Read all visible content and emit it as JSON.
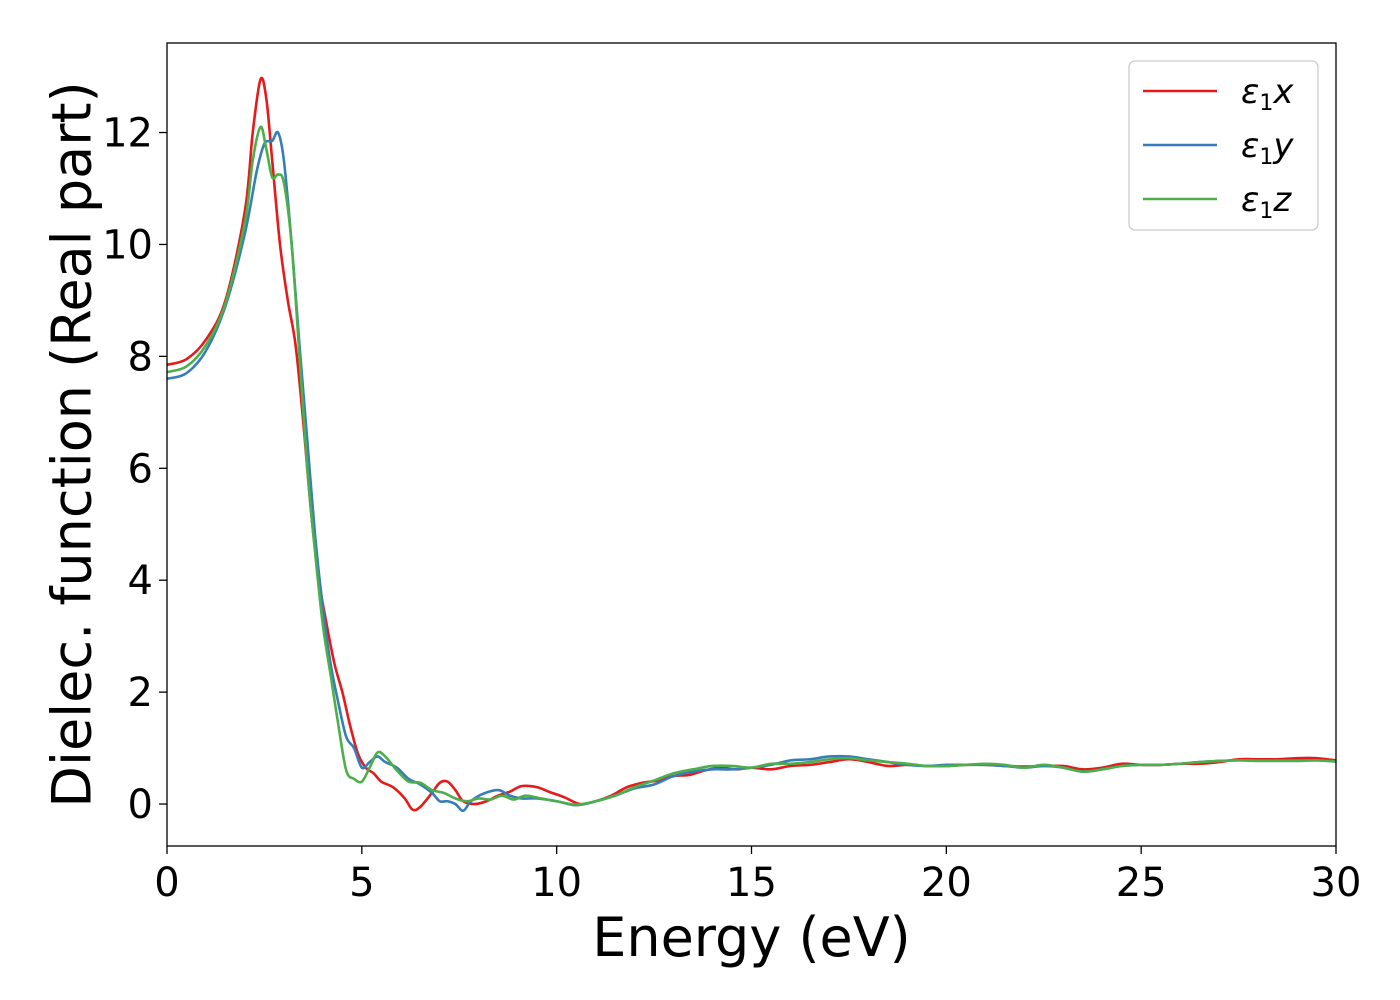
{
  "chart_data": {
    "type": "line",
    "xlabel": "Energy (eV)",
    "ylabel": "Dielec. function (Real part)",
    "xlim": [
      0,
      30
    ],
    "ylim": [
      -0.75,
      13.6
    ],
    "xticks": [
      0,
      5,
      10,
      15,
      20,
      25,
      30
    ],
    "yticks": [
      0,
      2,
      4,
      6,
      8,
      10,
      12
    ],
    "grid": false,
    "legend_position": "top-right",
    "series": [
      {
        "name": "ε1x",
        "label_base": "ε",
        "label_sub": "1",
        "label_tail": "x",
        "color": "#e41a1c",
        "points": [
          [
            0,
            7.85
          ],
          [
            0.5,
            7.95
          ],
          [
            1.0,
            8.3
          ],
          [
            1.5,
            9.0
          ],
          [
            2.0,
            10.6
          ],
          [
            2.2,
            12.0
          ],
          [
            2.4,
            12.95
          ],
          [
            2.55,
            12.6
          ],
          [
            2.7,
            11.5
          ],
          [
            2.9,
            10.0
          ],
          [
            3.1,
            9.0
          ],
          [
            3.3,
            8.2
          ],
          [
            3.5,
            6.8
          ],
          [
            3.7,
            5.2
          ],
          [
            3.9,
            4.0
          ],
          [
            4.1,
            3.2
          ],
          [
            4.3,
            2.5
          ],
          [
            4.5,
            2.0
          ],
          [
            4.7,
            1.4
          ],
          [
            4.9,
            0.9
          ],
          [
            5.1,
            0.65
          ],
          [
            5.3,
            0.55
          ],
          [
            5.5,
            0.4
          ],
          [
            5.8,
            0.3
          ],
          [
            6.1,
            0.1
          ],
          [
            6.3,
            -0.1
          ],
          [
            6.5,
            -0.05
          ],
          [
            6.8,
            0.2
          ],
          [
            7.0,
            0.38
          ],
          [
            7.2,
            0.4
          ],
          [
            7.4,
            0.25
          ],
          [
            7.6,
            0.05
          ],
          [
            7.9,
            0.0
          ],
          [
            8.2,
            0.05
          ],
          [
            8.5,
            0.15
          ],
          [
            8.8,
            0.22
          ],
          [
            9.1,
            0.32
          ],
          [
            9.5,
            0.3
          ],
          [
            9.8,
            0.22
          ],
          [
            10.2,
            0.12
          ],
          [
            10.6,
            0.0
          ],
          [
            11.0,
            0.05
          ],
          [
            11.4,
            0.15
          ],
          [
            11.8,
            0.3
          ],
          [
            12.2,
            0.38
          ],
          [
            12.6,
            0.42
          ],
          [
            13.0,
            0.5
          ],
          [
            13.4,
            0.52
          ],
          [
            13.8,
            0.6
          ],
          [
            14.2,
            0.65
          ],
          [
            14.6,
            0.62
          ],
          [
            15.0,
            0.65
          ],
          [
            15.5,
            0.62
          ],
          [
            16.0,
            0.68
          ],
          [
            16.5,
            0.7
          ],
          [
            17.0,
            0.75
          ],
          [
            17.5,
            0.8
          ],
          [
            18.0,
            0.75
          ],
          [
            18.5,
            0.68
          ],
          [
            19.0,
            0.7
          ],
          [
            19.5,
            0.68
          ],
          [
            20.0,
            0.68
          ],
          [
            20.5,
            0.7
          ],
          [
            21.0,
            0.7
          ],
          [
            21.5,
            0.68
          ],
          [
            22.0,
            0.67
          ],
          [
            22.5,
            0.68
          ],
          [
            23.0,
            0.68
          ],
          [
            23.5,
            0.62
          ],
          [
            24.0,
            0.65
          ],
          [
            24.5,
            0.72
          ],
          [
            25.0,
            0.7
          ],
          [
            25.5,
            0.7
          ],
          [
            26.0,
            0.72
          ],
          [
            26.5,
            0.72
          ],
          [
            27.0,
            0.75
          ],
          [
            27.5,
            0.8
          ],
          [
            28.0,
            0.8
          ],
          [
            28.5,
            0.8
          ],
          [
            29.0,
            0.82
          ],
          [
            29.5,
            0.82
          ],
          [
            30.0,
            0.78
          ]
        ]
      },
      {
        "name": "ε1y",
        "label_base": "ε",
        "label_sub": "1",
        "label_tail": "y",
        "color": "#377eb8",
        "points": [
          [
            0,
            7.6
          ],
          [
            0.5,
            7.7
          ],
          [
            1.0,
            8.1
          ],
          [
            1.5,
            8.9
          ],
          [
            2.0,
            10.2
          ],
          [
            2.3,
            11.3
          ],
          [
            2.5,
            11.8
          ],
          [
            2.7,
            11.85
          ],
          [
            2.85,
            12.0
          ],
          [
            3.0,
            11.5
          ],
          [
            3.2,
            10.0
          ],
          [
            3.4,
            8.2
          ],
          [
            3.6,
            6.5
          ],
          [
            3.8,
            4.8
          ],
          [
            4.0,
            3.5
          ],
          [
            4.2,
            2.5
          ],
          [
            4.4,
            1.8
          ],
          [
            4.6,
            1.2
          ],
          [
            4.8,
            1.0
          ],
          [
            5.0,
            0.65
          ],
          [
            5.2,
            0.75
          ],
          [
            5.4,
            0.85
          ],
          [
            5.6,
            0.75
          ],
          [
            5.9,
            0.65
          ],
          [
            6.2,
            0.45
          ],
          [
            6.5,
            0.35
          ],
          [
            6.8,
            0.2
          ],
          [
            7.0,
            0.05
          ],
          [
            7.2,
            0.05
          ],
          [
            7.4,
            0.0
          ],
          [
            7.6,
            -0.12
          ],
          [
            7.8,
            0.05
          ],
          [
            8.1,
            0.18
          ],
          [
            8.5,
            0.25
          ],
          [
            8.8,
            0.15
          ],
          [
            9.1,
            0.1
          ],
          [
            9.5,
            0.1
          ],
          [
            10.0,
            0.05
          ],
          [
            10.5,
            -0.02
          ],
          [
            11.0,
            0.05
          ],
          [
            11.5,
            0.15
          ],
          [
            12.0,
            0.28
          ],
          [
            12.5,
            0.35
          ],
          [
            13.0,
            0.5
          ],
          [
            13.5,
            0.58
          ],
          [
            14.0,
            0.62
          ],
          [
            14.5,
            0.62
          ],
          [
            15.0,
            0.65
          ],
          [
            15.5,
            0.7
          ],
          [
            16.0,
            0.78
          ],
          [
            16.5,
            0.8
          ],
          [
            17.0,
            0.85
          ],
          [
            17.5,
            0.85
          ],
          [
            18.0,
            0.8
          ],
          [
            18.5,
            0.75
          ],
          [
            19.0,
            0.7
          ],
          [
            19.5,
            0.68
          ],
          [
            20.0,
            0.7
          ],
          [
            20.5,
            0.7
          ],
          [
            21.0,
            0.7
          ],
          [
            21.5,
            0.68
          ],
          [
            22.0,
            0.65
          ],
          [
            22.5,
            0.68
          ],
          [
            23.0,
            0.65
          ],
          [
            23.5,
            0.58
          ],
          [
            24.0,
            0.62
          ],
          [
            24.5,
            0.68
          ],
          [
            25.0,
            0.7
          ],
          [
            25.5,
            0.7
          ],
          [
            26.0,
            0.72
          ],
          [
            26.5,
            0.75
          ],
          [
            27.0,
            0.77
          ],
          [
            27.5,
            0.78
          ],
          [
            28.0,
            0.78
          ],
          [
            28.5,
            0.78
          ],
          [
            29.0,
            0.78
          ],
          [
            29.5,
            0.78
          ],
          [
            30.0,
            0.76
          ]
        ]
      },
      {
        "name": "ε1z",
        "label_base": "ε",
        "label_sub": "1",
        "label_tail": "z",
        "color": "#4daf4a",
        "points": [
          [
            0,
            7.72
          ],
          [
            0.5,
            7.82
          ],
          [
            1.0,
            8.2
          ],
          [
            1.5,
            8.95
          ],
          [
            2.0,
            10.4
          ],
          [
            2.2,
            11.5
          ],
          [
            2.4,
            12.1
          ],
          [
            2.55,
            11.7
          ],
          [
            2.7,
            11.2
          ],
          [
            2.85,
            11.25
          ],
          [
            3.0,
            11.1
          ],
          [
            3.2,
            10.0
          ],
          [
            3.4,
            8.0
          ],
          [
            3.6,
            6.0
          ],
          [
            3.8,
            4.5
          ],
          [
            4.0,
            3.2
          ],
          [
            4.2,
            2.3
          ],
          [
            4.4,
            1.4
          ],
          [
            4.6,
            0.6
          ],
          [
            4.8,
            0.45
          ],
          [
            5.0,
            0.4
          ],
          [
            5.2,
            0.65
          ],
          [
            5.4,
            0.92
          ],
          [
            5.6,
            0.85
          ],
          [
            5.9,
            0.6
          ],
          [
            6.2,
            0.4
          ],
          [
            6.5,
            0.38
          ],
          [
            6.8,
            0.25
          ],
          [
            7.1,
            0.2
          ],
          [
            7.4,
            0.1
          ],
          [
            7.7,
            0.05
          ],
          [
            8.0,
            0.1
          ],
          [
            8.3,
            0.08
          ],
          [
            8.6,
            0.15
          ],
          [
            8.9,
            0.08
          ],
          [
            9.2,
            0.15
          ],
          [
            9.6,
            0.1
          ],
          [
            10.0,
            0.05
          ],
          [
            10.5,
            -0.01
          ],
          [
            11.0,
            0.05
          ],
          [
            11.5,
            0.15
          ],
          [
            12.0,
            0.3
          ],
          [
            12.5,
            0.42
          ],
          [
            13.0,
            0.55
          ],
          [
            13.5,
            0.62
          ],
          [
            14.0,
            0.68
          ],
          [
            14.5,
            0.68
          ],
          [
            15.0,
            0.65
          ],
          [
            15.5,
            0.72
          ],
          [
            16.0,
            0.72
          ],
          [
            16.5,
            0.75
          ],
          [
            17.0,
            0.8
          ],
          [
            17.5,
            0.82
          ],
          [
            18.0,
            0.78
          ],
          [
            18.5,
            0.75
          ],
          [
            19.0,
            0.72
          ],
          [
            19.5,
            0.68
          ],
          [
            20.0,
            0.68
          ],
          [
            20.5,
            0.7
          ],
          [
            21.0,
            0.72
          ],
          [
            21.5,
            0.7
          ],
          [
            22.0,
            0.65
          ],
          [
            22.5,
            0.7
          ],
          [
            23.0,
            0.65
          ],
          [
            23.5,
            0.58
          ],
          [
            24.0,
            0.62
          ],
          [
            24.5,
            0.68
          ],
          [
            25.0,
            0.7
          ],
          [
            25.5,
            0.7
          ],
          [
            26.0,
            0.72
          ],
          [
            26.5,
            0.75
          ],
          [
            27.0,
            0.77
          ],
          [
            27.5,
            0.78
          ],
          [
            28.0,
            0.77
          ],
          [
            28.5,
            0.77
          ],
          [
            29.0,
            0.77
          ],
          [
            29.5,
            0.78
          ],
          [
            30.0,
            0.76
          ]
        ]
      }
    ]
  }
}
